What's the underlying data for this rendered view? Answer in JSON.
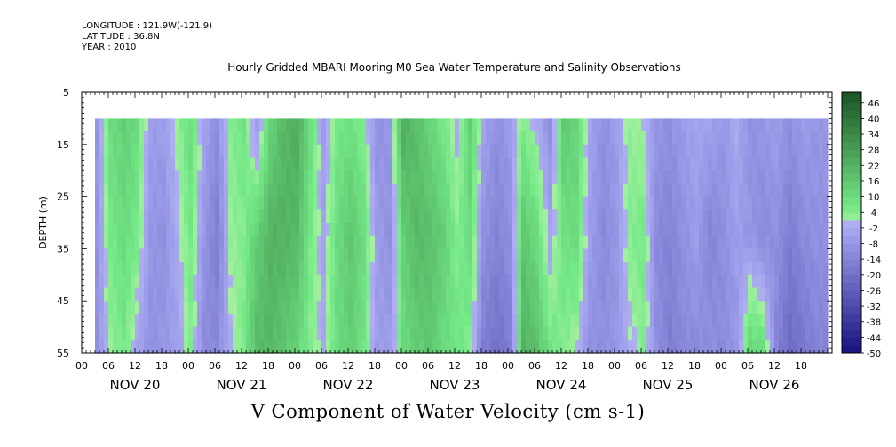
{
  "header": {
    "longitude": "LONGITUDE : 121.9W(-121.9)",
    "latitude": "LATITUDE : 36.8N",
    "year": "YEAR : 2010"
  },
  "chart_data": {
    "type": "heatmap",
    "title": "Hourly Gridded MBARI Mooring M0 Sea Water Temperature and Salinity Observations",
    "variable_label": "V Component of Water Velocity (cm s-1)",
    "ylabel": "DEPTH (m)",
    "ylim": [
      5,
      55
    ],
    "y_ticks": [
      5,
      15,
      25,
      35,
      45,
      55
    ],
    "y_inverted": true,
    "x_hour_ticks": [
      "00",
      "06",
      "12",
      "18",
      "00",
      "06",
      "12",
      "18",
      "00",
      "06",
      "12",
      "18",
      "00",
      "06",
      "12",
      "18",
      "00",
      "06",
      "12",
      "18",
      "00",
      "06",
      "12",
      "18",
      "00",
      "06",
      "12",
      "18"
    ],
    "x_day_labels": [
      "NOV 20",
      "NOV 21",
      "NOV 22",
      "NOV 23",
      "NOV 24",
      "NOV 25",
      "NOV 26"
    ],
    "x_range_hours": [
      0,
      169
    ],
    "data_start_hour": 3,
    "data_depth_range": [
      10,
      55
    ],
    "colorbar": {
      "labels": [
        "46",
        "40",
        "34",
        "28",
        "22",
        "16",
        "10",
        "4",
        "-2",
        "-8",
        "-14",
        "-20",
        "-26",
        "-32",
        "-38",
        "-44",
        "-50"
      ],
      "range": [
        -50,
        50
      ],
      "step": 3
    },
    "column_hour_step": 3,
    "columns": [
      {
        "hour": 3,
        "v": [
          -8,
          -9,
          -10
        ]
      },
      {
        "hour": 6,
        "v": [
          10,
          6,
          2
        ]
      },
      {
        "hour": 9,
        "v": [
          14,
          10,
          6
        ]
      },
      {
        "hour": 12,
        "v": [
          10,
          6,
          -4
        ]
      },
      {
        "hour": 15,
        "v": [
          -6,
          -8,
          -10
        ]
      },
      {
        "hour": 18,
        "v": [
          -6,
          -10,
          -8
        ]
      },
      {
        "hour": 21,
        "v": [
          2,
          -2,
          -6
        ]
      },
      {
        "hour": 24,
        "v": [
          10,
          6,
          4
        ]
      },
      {
        "hour": 27,
        "v": [
          -4,
          -8,
          -12
        ]
      },
      {
        "hour": 30,
        "v": [
          -10,
          -16,
          -12
        ]
      },
      {
        "hour": 33,
        "v": [
          4,
          2,
          -2
        ]
      },
      {
        "hour": 36,
        "v": [
          8,
          4,
          6
        ]
      },
      {
        "hour": 39,
        "v": [
          -8,
          14,
          20
        ]
      },
      {
        "hour": 42,
        "v": [
          12,
          22,
          20
        ]
      },
      {
        "hour": 45,
        "v": [
          20,
          22,
          16
        ]
      },
      {
        "hour": 48,
        "v": [
          24,
          20,
          12
        ]
      },
      {
        "hour": 51,
        "v": [
          10,
          6,
          4
        ]
      },
      {
        "hour": 54,
        "v": [
          -6,
          -4,
          -2
        ]
      },
      {
        "hour": 57,
        "v": [
          6,
          10,
          10
        ]
      },
      {
        "hour": 60,
        "v": [
          8,
          16,
          14
        ]
      },
      {
        "hour": 63,
        "v": [
          4,
          10,
          8
        ]
      },
      {
        "hour": 66,
        "v": [
          -10,
          -6,
          -6
        ]
      },
      {
        "hour": 69,
        "v": [
          -8,
          -10,
          -6
        ]
      },
      {
        "hour": 72,
        "v": [
          24,
          14,
          10
        ]
      },
      {
        "hour": 75,
        "v": [
          18,
          20,
          14
        ]
      },
      {
        "hour": 78,
        "v": [
          12,
          18,
          16
        ]
      },
      {
        "hour": 81,
        "v": [
          6,
          14,
          10
        ]
      },
      {
        "hour": 84,
        "v": [
          -2,
          4,
          8
        ]
      },
      {
        "hour": 87,
        "v": [
          14,
          10,
          4
        ]
      },
      {
        "hour": 90,
        "v": [
          -4,
          -10,
          -16
        ]
      },
      {
        "hour": 93,
        "v": [
          -10,
          -14,
          -20
        ]
      },
      {
        "hour": 96,
        "v": [
          -6,
          -10,
          -16
        ]
      },
      {
        "hour": 99,
        "v": [
          4,
          16,
          22
        ]
      },
      {
        "hour": 102,
        "v": [
          -2,
          10,
          18
        ]
      },
      {
        "hour": 105,
        "v": [
          -10,
          -4,
          8
        ]
      },
      {
        "hour": 108,
        "v": [
          16,
          8,
          4
        ]
      },
      {
        "hour": 111,
        "v": [
          12,
          10,
          0
        ]
      },
      {
        "hour": 114,
        "v": [
          -4,
          -6,
          -10
        ]
      },
      {
        "hour": 117,
        "v": [
          -10,
          -12,
          -10
        ]
      },
      {
        "hour": 120,
        "v": [
          -6,
          -8,
          -8
        ]
      },
      {
        "hour": 123,
        "v": [
          2,
          4,
          -2
        ]
      },
      {
        "hour": 126,
        "v": [
          0,
          6,
          4
        ]
      },
      {
        "hour": 129,
        "v": [
          -8,
          -12,
          -10
        ]
      },
      {
        "hour": 132,
        "v": [
          -10,
          -14,
          -16
        ]
      },
      {
        "hour": 135,
        "v": [
          -6,
          -10,
          -12
        ]
      },
      {
        "hour": 138,
        "v": [
          -4,
          -6,
          -12
        ]
      },
      {
        "hour": 141,
        "v": [
          -4,
          -14,
          -10
        ]
      },
      {
        "hour": 144,
        "v": [
          -8,
          -10,
          -12
        ]
      },
      {
        "hour": 147,
        "v": [
          -2,
          -6,
          -8
        ]
      },
      {
        "hour": 150,
        "v": [
          -10,
          -8,
          12
        ]
      },
      {
        "hour": 153,
        "v": [
          -8,
          -12,
          10
        ]
      },
      {
        "hour": 156,
        "v": [
          -6,
          -10,
          -14
        ]
      },
      {
        "hour": 159,
        "v": [
          -10,
          -16,
          -22
        ]
      },
      {
        "hour": 162,
        "v": [
          -6,
          -12,
          -18
        ]
      },
      {
        "hour": 165,
        "v": [
          -8,
          -10,
          -14
        ]
      }
    ]
  }
}
